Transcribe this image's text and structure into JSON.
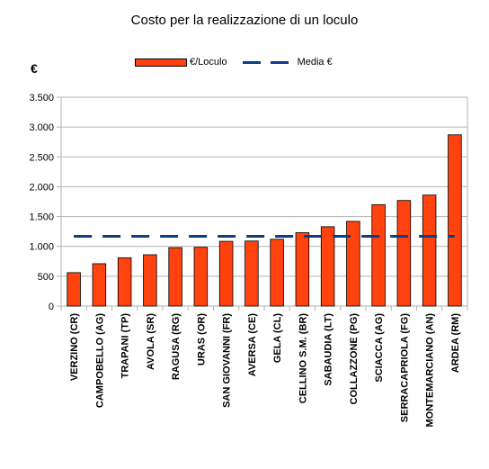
{
  "chart_data": {
    "type": "bar",
    "title": "Costo per la realizzazione di un loculo",
    "ylabel": "€",
    "xlabel": "",
    "ylim": [
      0,
      3500
    ],
    "yticks": [
      0,
      500,
      1000,
      1500,
      2000,
      2500,
      3000,
      3500
    ],
    "ytick_labels": [
      "0",
      "500",
      "1.000",
      "1.500",
      "2.000",
      "2.500",
      "3.000",
      "3.500"
    ],
    "grid": true,
    "legend_position": "top-center",
    "categories": [
      "VERZINO (CR)",
      "CAMPOBELLO (AG)",
      "TRAPANI (TP)",
      "AVOLA (SR)",
      "RAGUSA (RG)",
      "URAS (OR)",
      "SAN GIOVANNI (FR)",
      "AVERSA (CE)",
      "GELA (CL)",
      "CELLINO S.M. (BR)",
      "SABAUDIA (LT)",
      "COLLAZZONE (PG)",
      "SCIACCA (AG)",
      "SERRACAPRIOLA (FG)",
      "MONTEMARCIANO (AN)",
      "ARDEA (RM)"
    ],
    "series": [
      {
        "name": "€/Loculo",
        "type": "bar",
        "color": "#ff420e",
        "values": [
          560,
          710,
          810,
          860,
          980,
          985,
          1085,
          1090,
          1120,
          1230,
          1330,
          1420,
          1700,
          1770,
          1860,
          2870
        ]
      },
      {
        "name": "Media €",
        "type": "line-dashed",
        "color": "#0b3e87",
        "values": [
          1170,
          1170,
          1170,
          1170,
          1170,
          1170,
          1170,
          1170,
          1170,
          1170,
          1170,
          1170,
          1170,
          1170,
          1170,
          1170
        ]
      }
    ]
  }
}
